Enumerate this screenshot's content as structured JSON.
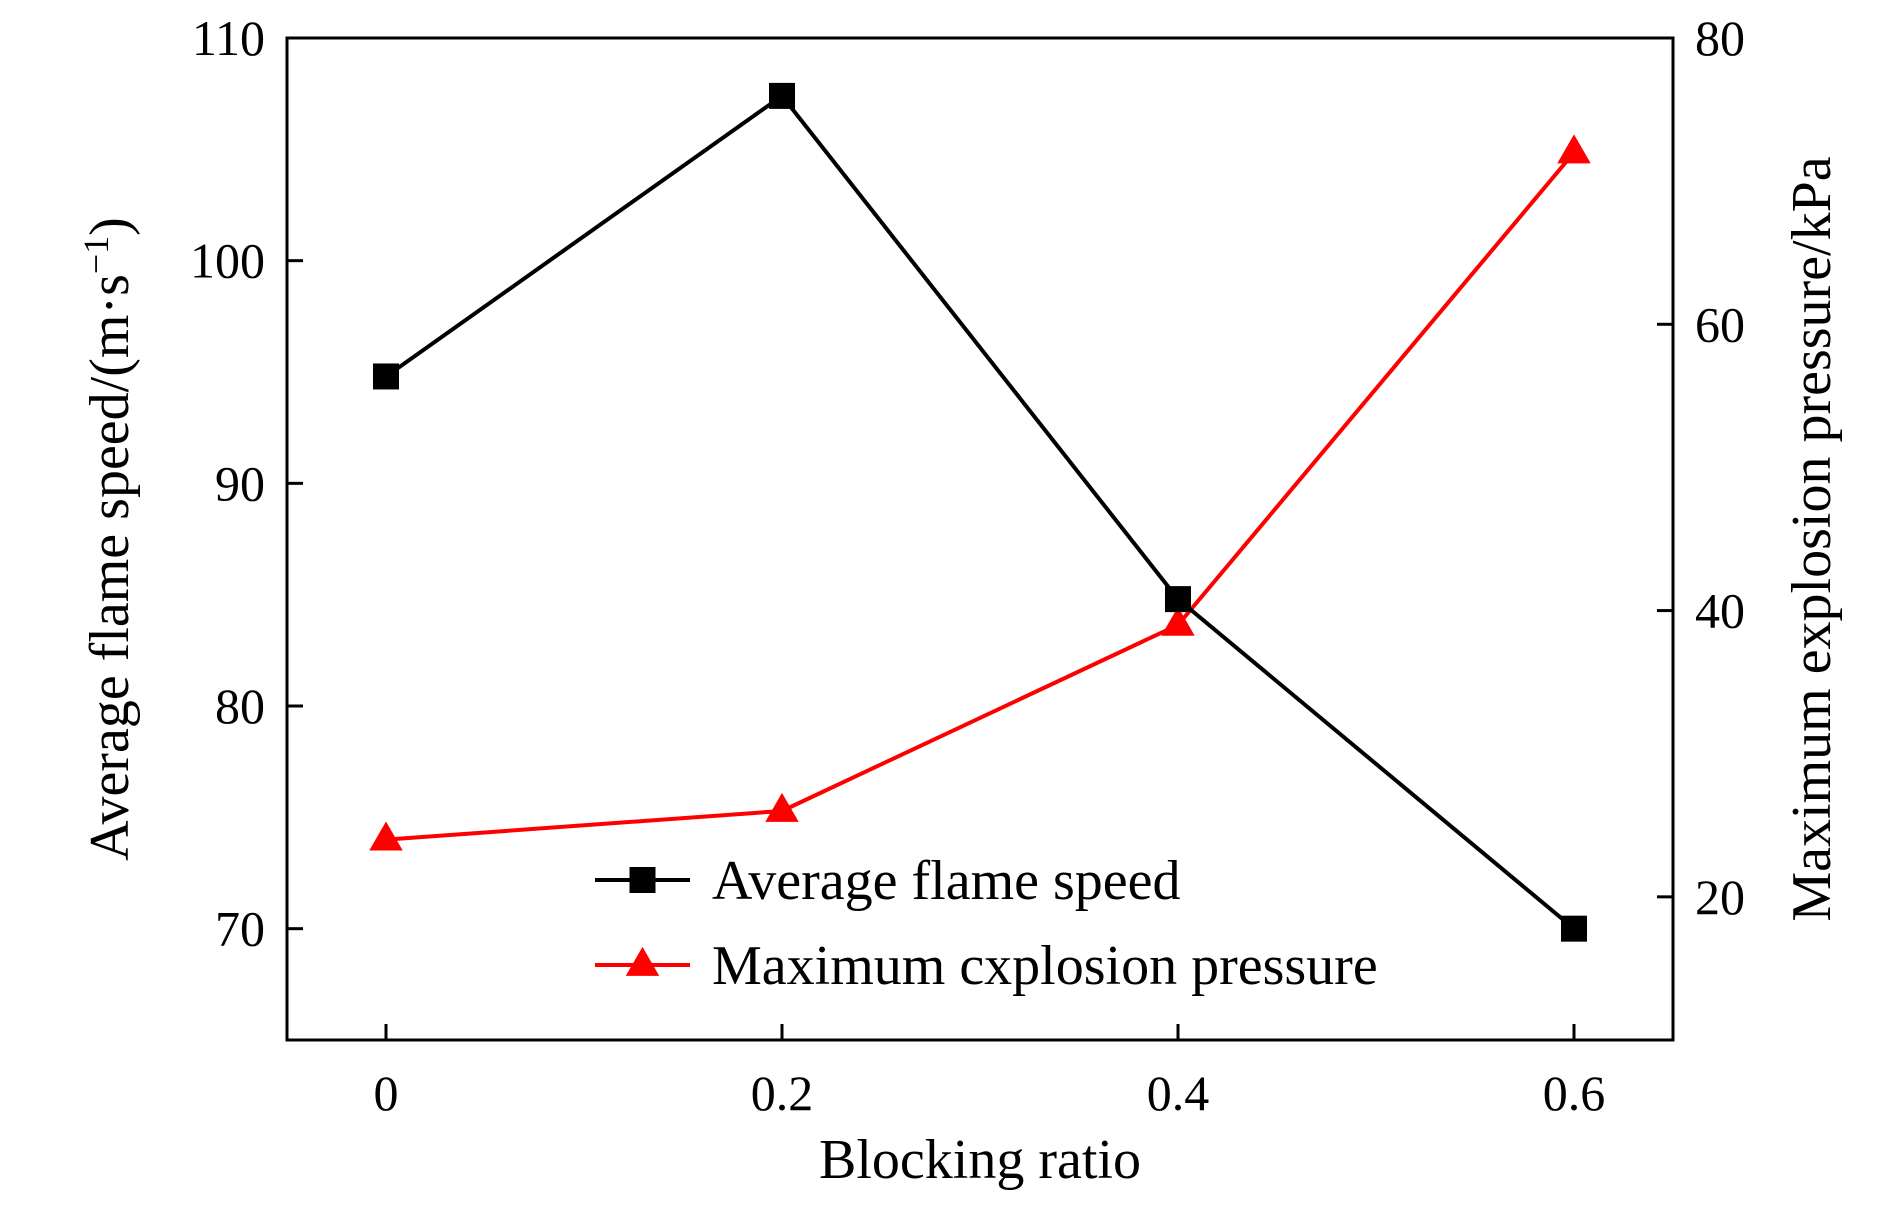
{
  "chart_data": {
    "type": "line",
    "title": "",
    "xlabel": "Blocking ratio",
    "ylabel_left": {
      "main": "Average flame speed/(m·s",
      "superscript": "−1",
      "close": ")"
    },
    "ylabel_right": "Maximum explosion pressure/kPa",
    "x": [
      0,
      0.2,
      0.4,
      0.6
    ],
    "x_tick_labels": [
      "0",
      "0.2",
      "0.4",
      "0.6"
    ],
    "xlim": [
      -0.05,
      0.65
    ],
    "y_left_ticks": [
      70,
      80,
      90,
      100,
      110
    ],
    "y_left_tick_labels": [
      "70",
      "80",
      "90",
      "100",
      "110"
    ],
    "y_left_lim": [
      65,
      110
    ],
    "y_right_ticks": [
      20,
      40,
      60,
      80
    ],
    "y_right_tick_labels": [
      "20",
      "40",
      "60",
      "80"
    ],
    "y_right_lim": [
      10,
      80
    ],
    "grid": false,
    "legend_position": "bottom-center",
    "series": [
      {
        "name": "Average flame speed",
        "axis": "left",
        "color": "#000000",
        "marker": "square",
        "values": [
          94.8,
          107.4,
          84.8,
          70.0
        ]
      },
      {
        "name": "Maximum cxplosion pressure",
        "axis": "right",
        "color": "#ff0000",
        "marker": "triangle",
        "values": [
          24.0,
          26.0,
          39.0,
          72.0
        ]
      }
    ]
  }
}
